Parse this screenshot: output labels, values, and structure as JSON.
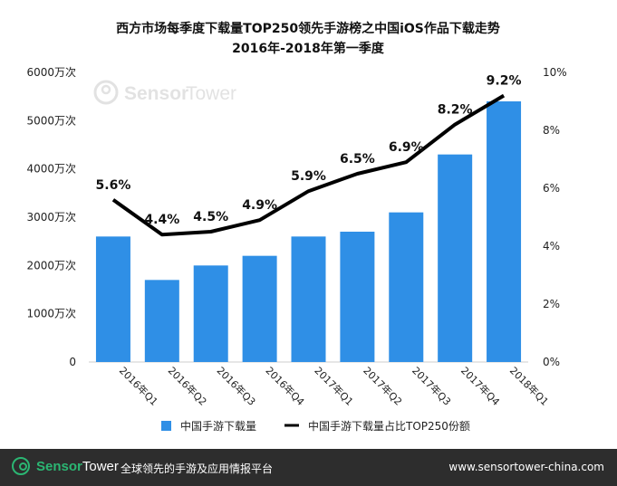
{
  "title_line1": "西方市场每季度下载量TOP250领先手游榜之中国iOS作品下载走势",
  "title_line2": "2016年-2018年第一季度",
  "watermark": {
    "brand_part1": "Sensor",
    "brand_part2": "Tower"
  },
  "footer": {
    "brand_part1": "Sensor",
    "brand_part2": "Tower",
    "tagline": "全球领先的手游及应用情报平台",
    "url": "www.sensortower-china.com"
  },
  "colors": {
    "bar": "#2f8fe6",
    "line": "#000000",
    "footer_bg": "#2d2d2d",
    "brand_green": "#2bb673"
  },
  "chart_data": {
    "type": "bar",
    "categories": [
      "2016年Q1",
      "2016年Q2",
      "2016年Q3",
      "2016年Q4",
      "2017年Q1",
      "2017年Q2",
      "2017年Q3",
      "2017年Q4",
      "2018年Q1"
    ],
    "series": [
      {
        "name": "中国手游下载量",
        "type": "bar",
        "axis": "left",
        "values": [
          2600,
          1700,
          2000,
          2200,
          2600,
          2700,
          3100,
          4300,
          5400
        ]
      },
      {
        "name": "中国手游下载量占比TOP250份额",
        "type": "line",
        "axis": "right",
        "values": [
          5.6,
          4.4,
          4.5,
          4.9,
          5.9,
          6.5,
          6.9,
          8.2,
          9.2
        ],
        "labels": [
          "5.6%",
          "4.4%",
          "4.5%",
          "4.9%",
          "5.9%",
          "6.5%",
          "6.9%",
          "8.2%",
          "9.2%"
        ]
      }
    ],
    "y_left": {
      "ylim": [
        0,
        6000
      ],
      "ticks": [
        "0",
        "1000万次",
        "2000万次",
        "3000万次",
        "4000万次",
        "5000万次",
        "6000万次"
      ],
      "tick_values": [
        0,
        1000,
        2000,
        3000,
        4000,
        5000,
        6000
      ]
    },
    "y_right": {
      "ylim": [
        0,
        10
      ],
      "ticks": [
        "0%",
        "2%",
        "4%",
        "6%",
        "8%",
        "10%"
      ],
      "tick_values": [
        0,
        2,
        4,
        6,
        8,
        10
      ]
    },
    "grid": false,
    "legend_position": "bottom"
  }
}
